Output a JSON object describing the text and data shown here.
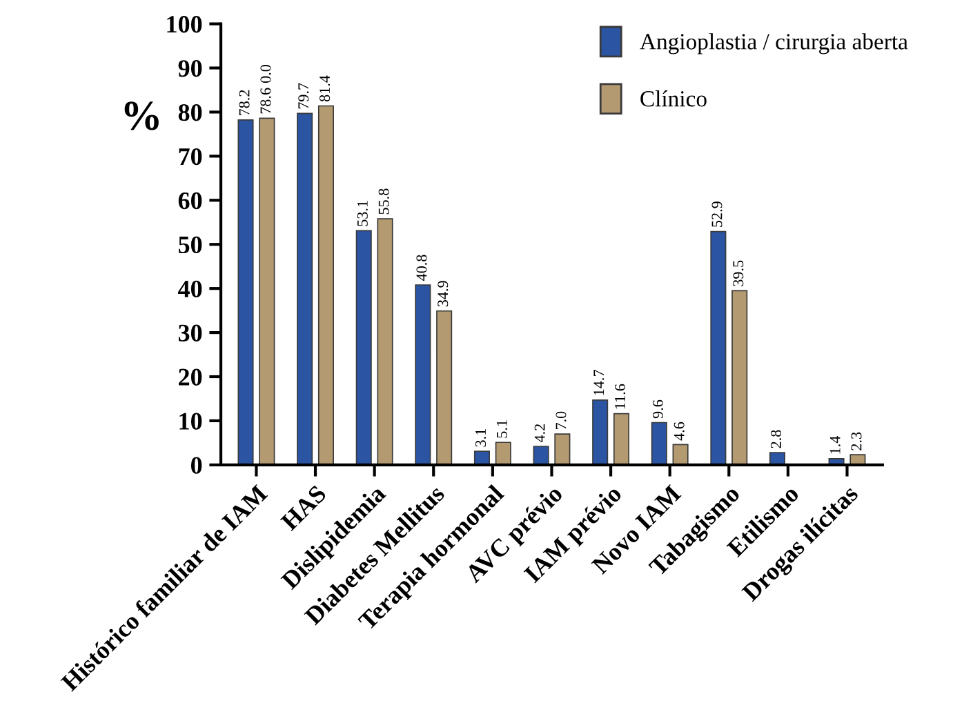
{
  "chart_data": {
    "type": "bar",
    "ylabel": "%",
    "categories": [
      "Histórico familiar de IAM",
      "HAS",
      "Dislipidemia",
      "Diabetes Mellitus",
      "Terapia hormonal",
      "AVC prévio",
      "IAM prévio",
      "Novo IAM",
      "Tabagismo",
      "Etilismo",
      "Drogas ilícitas"
    ],
    "series": [
      {
        "name": "Angioplastia / cirurgia aberta",
        "color": "#2b54a3",
        "values": [
          78.2,
          79.7,
          53.1,
          40.8,
          3.1,
          4.2,
          14.7,
          9.6,
          52.9,
          2.8,
          1.4
        ],
        "value_labels": [
          "78.2",
          "79.7",
          "53.1",
          "40.8",
          "3.1",
          "4.2",
          "14.7",
          "9.6",
          "52.9",
          "2.8",
          "1.4"
        ]
      },
      {
        "name": "Clínico",
        "color": "#b49a70",
        "values": [
          78.6,
          81.4,
          55.8,
          34.9,
          5.1,
          7.0,
          11.6,
          4.6,
          39.5,
          null,
          2.3
        ],
        "value_labels": [
          "78.6",
          "81.4",
          "55.8",
          "34.9",
          "5.1",
          "7.0",
          "11.6",
          "4.6",
          "39.5",
          null,
          "2.3"
        ]
      }
    ],
    "annotations": [
      "0.0"
    ],
    "ylim": [
      0,
      100
    ],
    "yticks": [
      0,
      10,
      20,
      30,
      40,
      50,
      60,
      70,
      80,
      90,
      100
    ],
    "grid": false,
    "legend": "top right"
  }
}
